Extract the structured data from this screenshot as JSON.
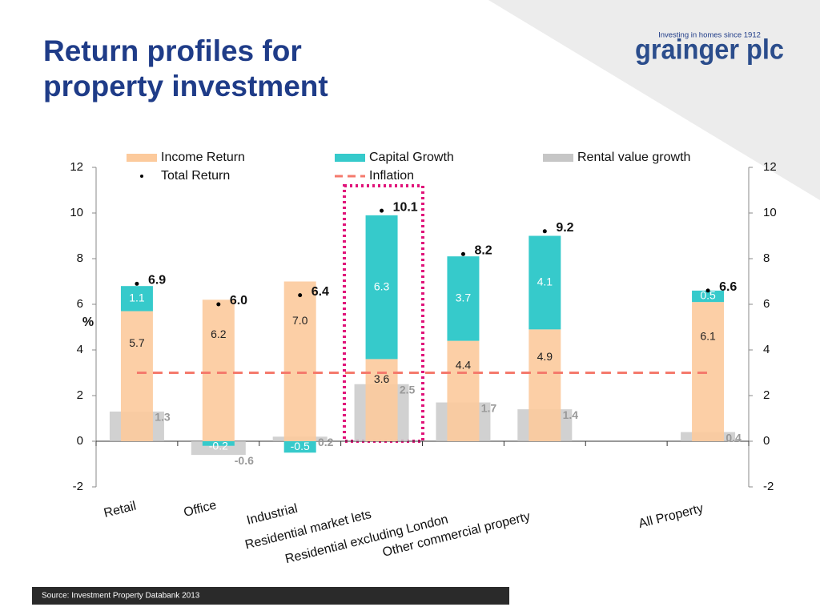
{
  "title": "Return profiles for property investment",
  "logo": {
    "tagline": "Investing in homes since 1912",
    "name": "grainger plc"
  },
  "source": "Source: Investment Property Databank 2013",
  "chart_data": {
    "type": "bar",
    "ylabel": "%",
    "categories": [
      "Retail",
      "Office",
      "Industrial",
      "Residential market lets",
      "Residential excluding London",
      "Other commercial property",
      null,
      "All Property"
    ],
    "series": [
      {
        "name": "Income Return",
        "color": "#fcca9c",
        "values": [
          5.7,
          6.2,
          7.0,
          3.6,
          4.4,
          4.9,
          null,
          6.1
        ],
        "value_labels": [
          "5.7",
          "6.2",
          "7.0",
          "3.6",
          "4.4",
          "4.9",
          null,
          "6.1"
        ]
      },
      {
        "name": "Capital Growth",
        "color": "#36cacb",
        "values": [
          1.1,
          -0.2,
          -0.5,
          6.3,
          3.7,
          4.1,
          null,
          0.5
        ],
        "value_labels": [
          "1.1",
          "-0.2",
          "-0.5",
          "6.3",
          "3.7",
          "4.1",
          null,
          "0.5"
        ]
      },
      {
        "name": "Rental value growth",
        "color": "#c6c6c6",
        "values": [
          1.3,
          -0.6,
          0.2,
          2.5,
          1.7,
          1.4,
          null,
          0.4
        ],
        "value_labels": [
          "1.3",
          "-0.6",
          "0.2",
          "2.5",
          "1.7",
          "1.4",
          null,
          "0.4"
        ]
      },
      {
        "name": "Total Return",
        "color": "#000000",
        "values": [
          6.9,
          6.0,
          6.4,
          10.1,
          8.2,
          9.2,
          null,
          6.6
        ],
        "value_labels": [
          "6.9",
          "6.0",
          "6.4",
          "10.1",
          "8.2",
          "9.2",
          null,
          "6.6"
        ]
      },
      {
        "name": "Inflation",
        "color": "#f47a6c",
        "values": [
          3,
          3,
          3,
          3,
          3,
          3,
          3,
          3
        ]
      }
    ],
    "ylim": [
      -2,
      12
    ],
    "yticks": [
      -2,
      0,
      2,
      4,
      6,
      8,
      10,
      12
    ],
    "y2lim": [
      -2,
      12
    ],
    "y2ticks": [
      -2,
      0,
      2,
      4,
      6,
      8,
      10,
      12
    ]
  }
}
